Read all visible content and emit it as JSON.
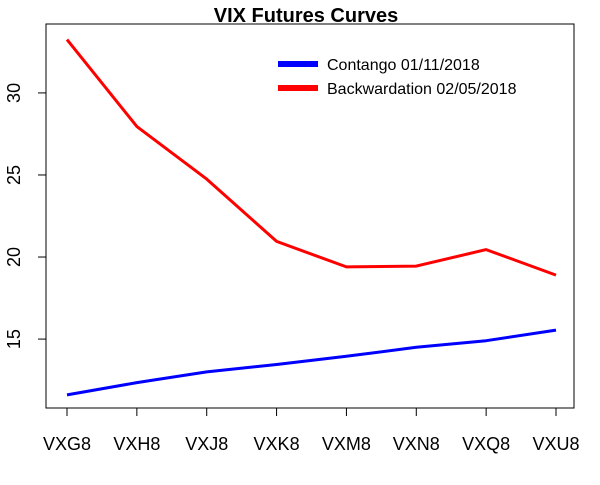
{
  "chart_data": {
    "type": "line",
    "title": "VIX Futures Curves",
    "xlabel": "",
    "ylabel": "",
    "categories": [
      "VXG8",
      "VXH8",
      "VXJ8",
      "VXK8",
      "VXM8",
      "VXN8",
      "VXQ8",
      "VXU8"
    ],
    "ylim": [
      10.8,
      34.2
    ],
    "yticks": [
      15,
      20,
      25,
      30
    ],
    "grid": false,
    "legend_position": "top-right",
    "series": [
      {
        "name": "Contango 01/11/2018",
        "color": "#0000ff",
        "values": [
          11.6,
          12.35,
          13.0,
          13.45,
          13.95,
          14.5,
          14.9,
          15.55
        ]
      },
      {
        "name": "Backwardation 02/05/2018",
        "color": "#ff0000",
        "values": [
          33.25,
          27.95,
          24.75,
          20.95,
          19.4,
          19.45,
          20.45,
          18.9
        ]
      }
    ]
  }
}
